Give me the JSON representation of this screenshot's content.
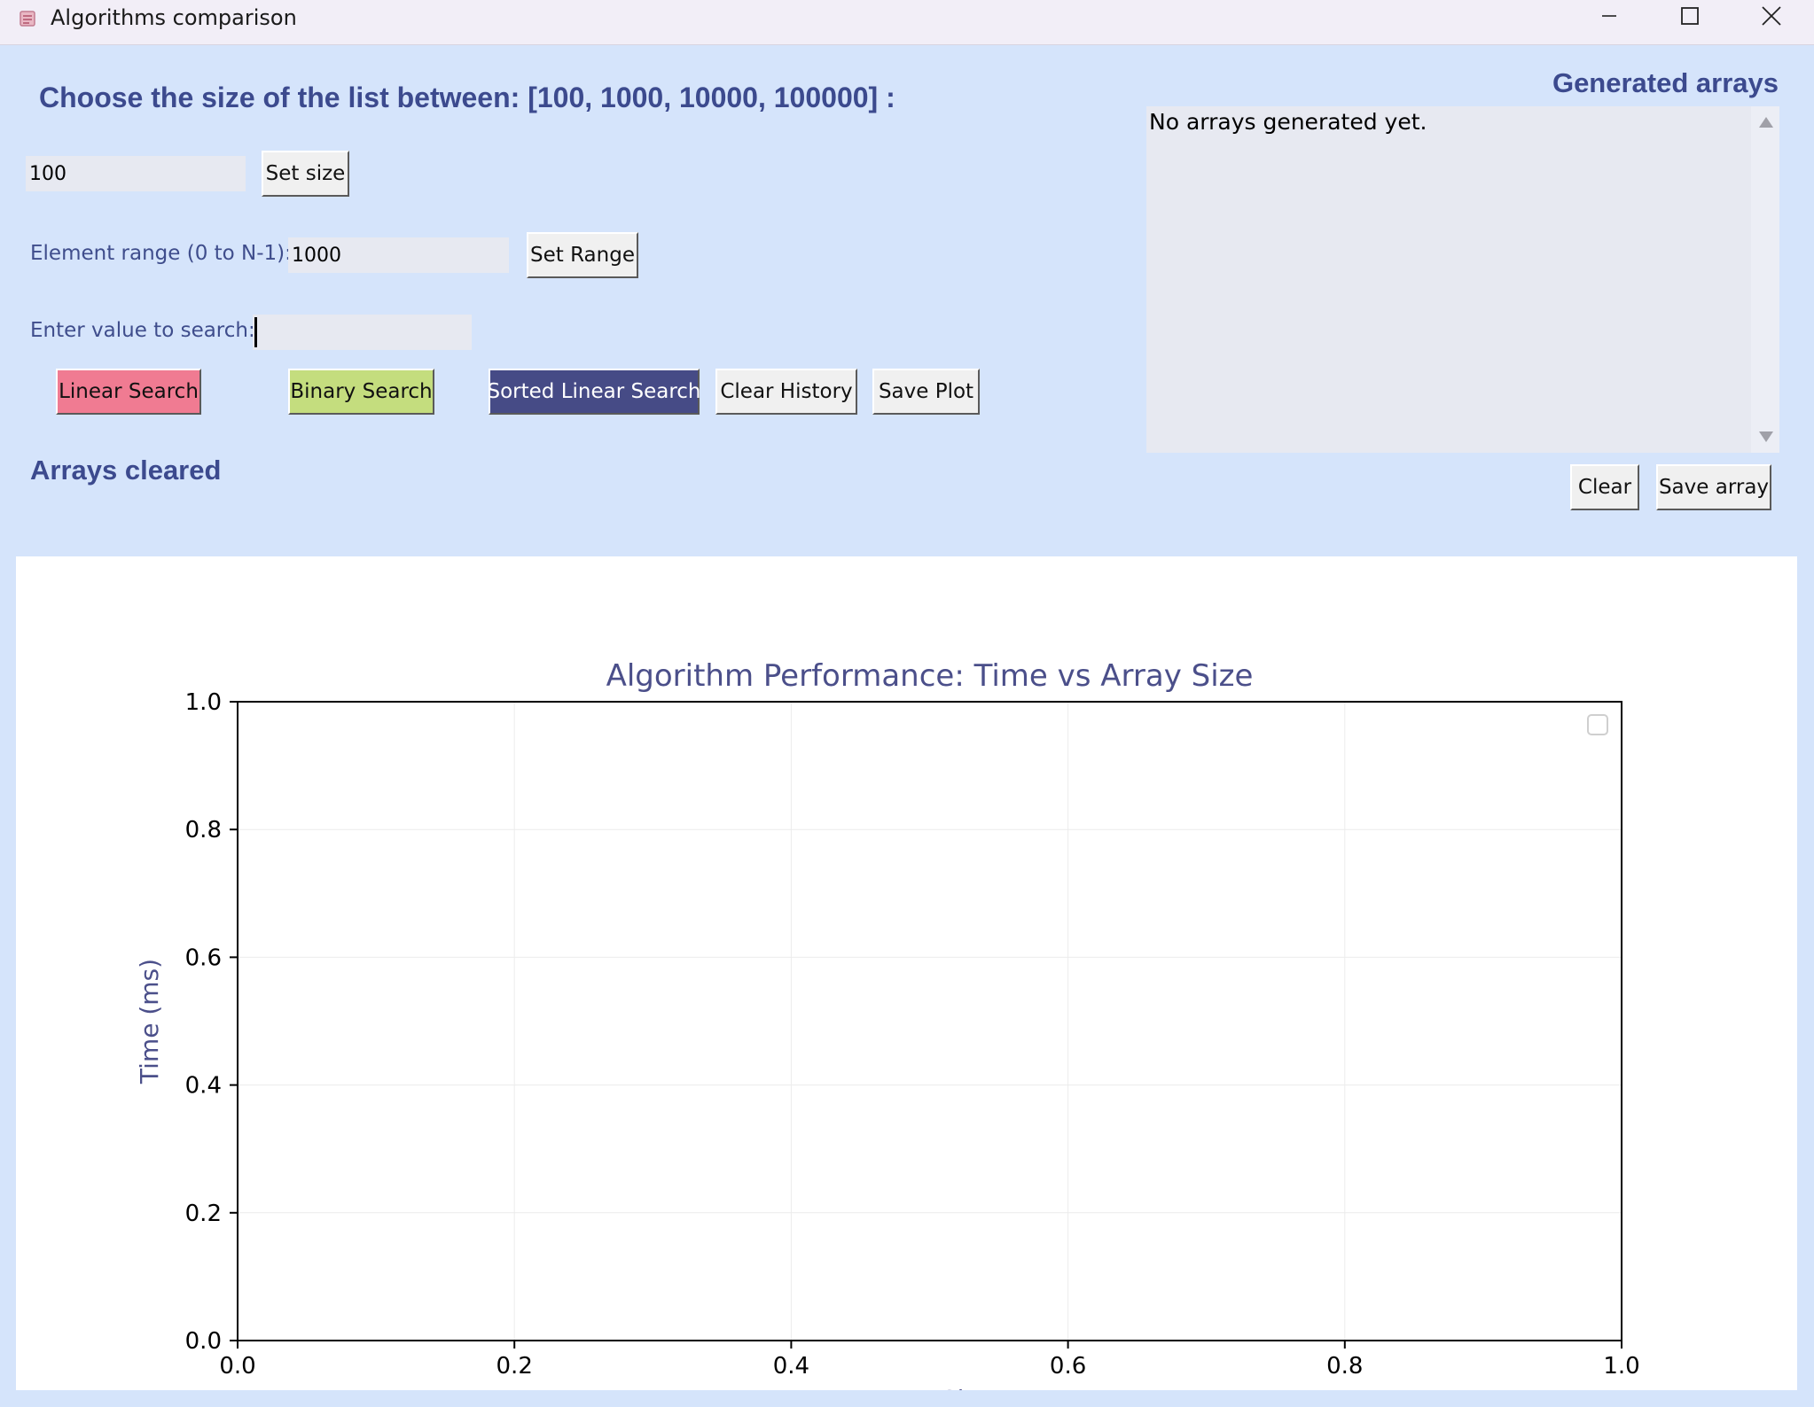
{
  "window": {
    "title": "Algorithms comparison",
    "icon": "app-icon",
    "controls": [
      "minimize-icon",
      "maximize-icon",
      "close-icon"
    ]
  },
  "controls": {
    "size_prompt": "Choose the size of the list between: [100, 1000, 10000, 100000] :",
    "size_value": "100",
    "set_size_label": "Set size",
    "range_label": "Element range (0 to N-1):",
    "range_value": "1000",
    "set_range_label": "Set Range",
    "search_label": "Enter value to search:",
    "search_value": "",
    "buttons": {
      "linear": "Linear Search",
      "binary": "Binary Search",
      "sorted_linear": "Sorted Linear Search",
      "clear_history": "Clear History",
      "save_plot": "Save Plot"
    },
    "status": "Arrays cleared"
  },
  "arrays_panel": {
    "title": "Generated arrays",
    "content": "No arrays generated yet.",
    "clear_label": "Clear",
    "save_label": "Save array"
  },
  "colors": {
    "background": "#d5e4fb",
    "heading": "#3c4a8e",
    "linear_button": "#f07b92",
    "binary_button": "#c4dd7e",
    "sorted_linear_button": "#464b86",
    "chart_text": "#4b4f8a"
  },
  "chart_data": {
    "type": "line",
    "title": "Algorithm Performance: Time vs Array Size",
    "xlabel": "Array Size",
    "ylabel": "Time (ms)",
    "xlim": [
      0.0,
      1.0
    ],
    "ylim": [
      0.0,
      1.0
    ],
    "xticks": [
      "0.0",
      "0.2",
      "0.4",
      "0.6",
      "0.8",
      "1.0"
    ],
    "yticks": [
      "0.0",
      "0.2",
      "0.4",
      "0.6",
      "0.8",
      "1.0"
    ],
    "grid": true,
    "legend": "top-right",
    "series": []
  }
}
